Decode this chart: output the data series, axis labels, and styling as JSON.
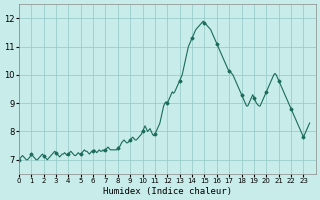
{
  "title": "",
  "xlabel": "Humidex (Indice chaleur)",
  "ylabel": "",
  "xlim": [
    0,
    24
  ],
  "ylim": [
    6.5,
    12.5
  ],
  "yticks": [
    7,
    8,
    9,
    10,
    11,
    12
  ],
  "xticks": [
    0,
    1,
    2,
    3,
    4,
    5,
    6,
    7,
    8,
    9,
    10,
    11,
    12,
    13,
    14,
    15,
    16,
    17,
    18,
    19,
    20,
    21,
    22,
    23
  ],
  "bg_color": "#c8ece9",
  "grid_color": "#90c8c4",
  "line_color": "#1a6b5a",
  "marker_color": "#1a6b5a",
  "x": [
    0.0,
    0.1,
    0.2,
    0.3,
    0.4,
    0.5,
    0.6,
    0.7,
    0.8,
    0.9,
    1.0,
    1.1,
    1.2,
    1.3,
    1.4,
    1.5,
    1.6,
    1.7,
    1.8,
    1.9,
    2.0,
    2.1,
    2.2,
    2.3,
    2.4,
    2.5,
    2.6,
    2.7,
    2.8,
    2.9,
    3.0,
    3.1,
    3.2,
    3.3,
    3.4,
    3.5,
    3.6,
    3.7,
    3.8,
    3.9,
    4.0,
    4.1,
    4.2,
    4.3,
    4.4,
    4.5,
    4.6,
    4.7,
    4.8,
    4.9,
    5.0,
    5.1,
    5.2,
    5.3,
    5.4,
    5.5,
    5.6,
    5.7,
    5.8,
    5.9,
    6.0,
    6.1,
    6.2,
    6.3,
    6.4,
    6.5,
    6.6,
    6.7,
    6.8,
    6.9,
    7.0,
    7.1,
    7.2,
    7.3,
    7.4,
    7.5,
    7.6,
    7.7,
    7.8,
    7.9,
    8.0,
    8.1,
    8.2,
    8.3,
    8.4,
    8.5,
    8.6,
    8.7,
    8.8,
    8.9,
    9.0,
    9.1,
    9.2,
    9.3,
    9.4,
    9.5,
    9.6,
    9.7,
    9.8,
    9.9,
    10.0,
    10.1,
    10.2,
    10.3,
    10.4,
    10.5,
    10.6,
    10.7,
    10.8,
    10.9,
    11.0,
    11.1,
    11.2,
    11.3,
    11.4,
    11.5,
    11.6,
    11.7,
    11.8,
    11.9,
    12.0,
    12.1,
    12.2,
    12.3,
    12.4,
    12.5,
    12.6,
    12.7,
    12.8,
    12.9,
    13.0,
    13.1,
    13.2,
    13.3,
    13.4,
    13.5,
    13.6,
    13.7,
    13.8,
    13.9,
    14.0,
    14.1,
    14.2,
    14.3,
    14.4,
    14.5,
    14.6,
    14.7,
    14.8,
    14.9,
    15.0,
    15.1,
    15.2,
    15.3,
    15.4,
    15.5,
    15.6,
    15.7,
    15.8,
    15.9,
    16.0,
    16.1,
    16.2,
    16.3,
    16.4,
    16.5,
    16.6,
    16.7,
    16.8,
    16.9,
    17.0,
    17.1,
    17.2,
    17.3,
    17.4,
    17.5,
    17.6,
    17.7,
    17.8,
    17.9,
    18.0,
    18.1,
    18.2,
    18.3,
    18.4,
    18.5,
    18.6,
    18.7,
    18.8,
    18.9,
    19.0,
    19.1,
    19.2,
    19.3,
    19.4,
    19.5,
    19.6,
    19.7,
    19.8,
    19.9,
    20.0,
    20.1,
    20.2,
    20.3,
    20.4,
    20.5,
    20.6,
    20.7,
    20.8,
    20.9,
    21.0,
    21.1,
    21.2,
    21.3,
    21.4,
    21.5,
    21.6,
    21.7,
    21.8,
    21.9,
    22.0,
    22.1,
    22.2,
    22.3,
    22.4,
    22.5,
    22.6,
    22.7,
    22.8,
    22.9,
    23.0,
    23.1,
    23.2,
    23.3,
    23.4,
    23.5
  ],
  "y": [
    7.0,
    7.05,
    7.1,
    7.15,
    7.1,
    7.05,
    7.0,
    7.0,
    7.05,
    7.1,
    7.2,
    7.15,
    7.1,
    7.05,
    7.0,
    7.0,
    7.05,
    7.1,
    7.15,
    7.2,
    7.15,
    7.1,
    7.05,
    7.0,
    7.05,
    7.1,
    7.15,
    7.2,
    7.25,
    7.3,
    7.25,
    7.2,
    7.15,
    7.1,
    7.15,
    7.2,
    7.2,
    7.25,
    7.2,
    7.15,
    7.2,
    7.25,
    7.3,
    7.25,
    7.2,
    7.15,
    7.15,
    7.2,
    7.25,
    7.2,
    7.2,
    7.25,
    7.3,
    7.35,
    7.3,
    7.3,
    7.25,
    7.2,
    7.25,
    7.3,
    7.3,
    7.35,
    7.3,
    7.25,
    7.3,
    7.35,
    7.3,
    7.3,
    7.35,
    7.3,
    7.35,
    7.4,
    7.45,
    7.4,
    7.35,
    7.35,
    7.35,
    7.35,
    7.35,
    7.35,
    7.4,
    7.45,
    7.5,
    7.6,
    7.65,
    7.7,
    7.65,
    7.6,
    7.6,
    7.65,
    7.7,
    7.75,
    7.8,
    7.75,
    7.7,
    7.7,
    7.75,
    7.8,
    7.85,
    7.9,
    8.0,
    8.1,
    8.2,
    8.1,
    8.0,
    8.05,
    8.1,
    8.0,
    7.9,
    7.85,
    7.9,
    8.0,
    8.1,
    8.2,
    8.3,
    8.5,
    8.7,
    8.9,
    9.0,
    9.05,
    9.0,
    9.1,
    9.2,
    9.3,
    9.4,
    9.35,
    9.4,
    9.5,
    9.6,
    9.7,
    9.8,
    9.9,
    10.0,
    10.2,
    10.4,
    10.6,
    10.8,
    11.0,
    11.1,
    11.2,
    11.3,
    11.4,
    11.5,
    11.6,
    11.65,
    11.7,
    11.75,
    11.8,
    11.85,
    11.9,
    11.85,
    11.8,
    11.75,
    11.7,
    11.65,
    11.6,
    11.5,
    11.4,
    11.3,
    11.2,
    11.1,
    11.0,
    10.9,
    10.8,
    10.7,
    10.6,
    10.5,
    10.4,
    10.3,
    10.2,
    10.15,
    10.1,
    10.05,
    10.0,
    9.9,
    9.8,
    9.7,
    9.6,
    9.5,
    9.4,
    9.3,
    9.2,
    9.1,
    9.0,
    8.9,
    8.9,
    9.0,
    9.1,
    9.2,
    9.3,
    9.2,
    9.1,
    9.0,
    8.95,
    8.9,
    8.9,
    9.0,
    9.1,
    9.2,
    9.3,
    9.4,
    9.5,
    9.6,
    9.7,
    9.8,
    9.9,
    10.0,
    10.05,
    10.0,
    9.9,
    9.8,
    9.7,
    9.6,
    9.5,
    9.4,
    9.3,
    9.2,
    9.1,
    9.0,
    8.9,
    8.8,
    8.7,
    8.6,
    8.5,
    8.4,
    8.3,
    8.2,
    8.1,
    8.0,
    7.9,
    7.8,
    7.9,
    8.0,
    8.1,
    8.2,
    8.3
  ]
}
